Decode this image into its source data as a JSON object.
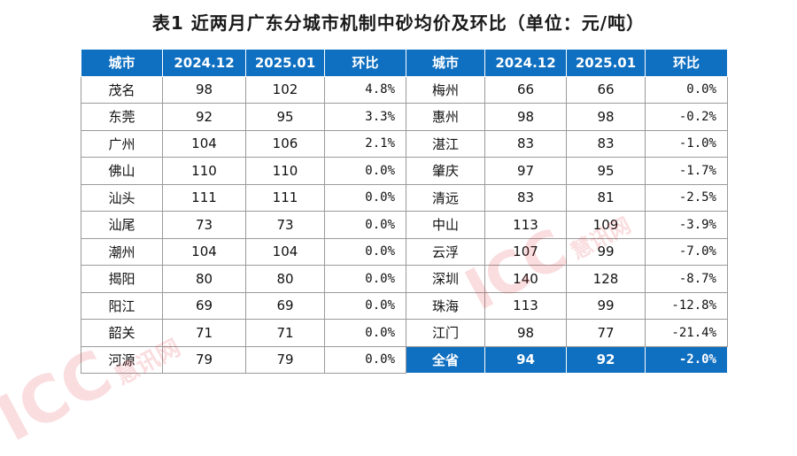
{
  "title": "表1  近两月广东分城市机制中砂均价及环比（单位：元/吨）",
  "headers": [
    "城市",
    "2024.12",
    "2025.01",
    "环比",
    "城市",
    "2024.12",
    "2025.01",
    "环比"
  ],
  "rows": [
    [
      "茂名",
      "98",
      "102",
      "4.8%",
      "梅州",
      "66",
      "66",
      "0.0%"
    ],
    [
      "东莞",
      "92",
      "95",
      "3.3%",
      "惠州",
      "98",
      "98",
      "-0.2%"
    ],
    [
      "广州",
      "104",
      "106",
      "2.1%",
      "湛江",
      "83",
      "83",
      "-1.0%"
    ],
    [
      "佛山",
      "110",
      "110",
      "0.0%",
      "肇庆",
      "97",
      "95",
      "-1.7%"
    ],
    [
      "汕头",
      "111",
      "111",
      "0.0%",
      "清远",
      "83",
      "81",
      "-2.5%"
    ],
    [
      "汕尾",
      "73",
      "73",
      "0.0%",
      "中山",
      "113",
      "109",
      "-3.9%"
    ],
    [
      "潮州",
      "104",
      "104",
      "0.0%",
      "云浮",
      "107",
      "99",
      "-7.0%"
    ],
    [
      "揭阳",
      "80",
      "80",
      "0.0%",
      "深圳",
      "140",
      "128",
      "-8.7%"
    ],
    [
      "阳江",
      "69",
      "69",
      "0.0%",
      "珠海",
      "113",
      "99",
      "-12.8%"
    ],
    [
      "韶关",
      "71",
      "71",
      "0.0%",
      "江门",
      "98",
      "77",
      "-21.4%"
    ],
    [
      "河源",
      "79",
      "79",
      "0.0%",
      "全省",
      "94",
      "92",
      "-2.0%"
    ]
  ],
  "watermark": {
    "latin": "ICC",
    "cn": "慧讯网"
  },
  "colors": {
    "header_bg": "#0f6fc0",
    "header_text": "#ffffff",
    "watermark": "#e2343c"
  }
}
